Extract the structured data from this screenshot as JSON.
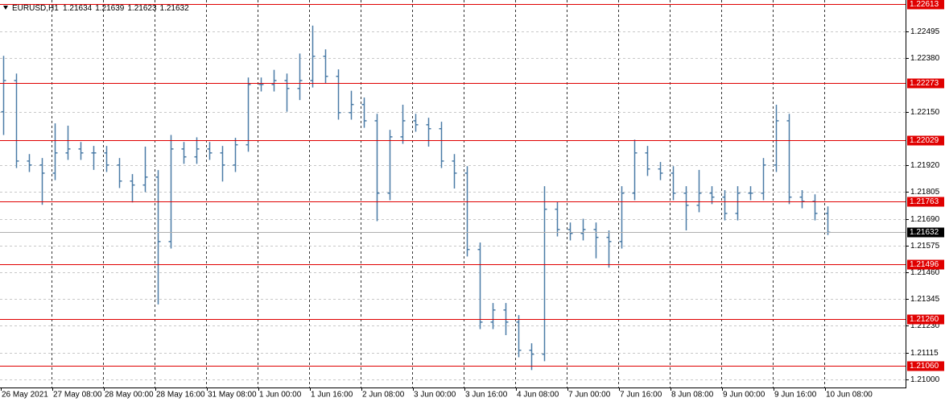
{
  "chart_data": {
    "type": "candlestick",
    "symbol": "EURUSD,H1",
    "quote": [
      1.21634,
      1.21639,
      1.21623,
      1.21632
    ],
    "color": "#4a7ba6",
    "level_color": "#e00000",
    "grid": true,
    "categories": [
      "26 May 2021",
      null,
      null,
      null,
      "27 May 08:00",
      null,
      null,
      null,
      "28 May 00:00",
      null,
      null,
      null,
      "28 May 16:00",
      null,
      null,
      null,
      "31 May 08:00",
      null,
      null,
      null,
      "1 Jun 00:00",
      null,
      null,
      null,
      "1 Jun 16:00",
      null,
      null,
      null,
      "2 Jun 08:00",
      null,
      null,
      null,
      "3 Jun 00:00",
      null,
      null,
      null,
      "3 Jun 16:00",
      null,
      null,
      null,
      "4 Jun 08:00",
      null,
      null,
      null,
      "7 Jun 00:00",
      null,
      null,
      null,
      "7 Jun 16:00",
      null,
      null,
      null,
      "8 Jun 08:00",
      null,
      null,
      null,
      "9 Jun 00:00",
      null,
      null,
      null,
      "9 Jun 16:00",
      null,
      null,
      null,
      "10 Jun 08:00"
    ],
    "open": [
      1.2215,
      1.22284,
      1.21938,
      1.21921,
      1.21886,
      1.21973,
      1.2199,
      1.21973,
      1.21973,
      1.21921,
      1.21852,
      1.21835,
      1.21869,
      1.21592,
      1.2199,
      1.21956,
      1.2199,
      1.21973,
      1.21921,
      1.22008,
      1.22267,
      1.22267,
      1.22284,
      1.2225,
      1.22284,
      1.22388,
      1.22302,
      1.22146,
      1.22181,
      1.22111,
      1.218,
      1.22042,
      1.22111,
      1.22094,
      1.22077,
      1.21938,
      1.21886,
      1.21558,
      1.21246,
      1.21298,
      1.21246,
      1.21125,
      1.21108,
      1.21731,
      1.21644,
      1.21627,
      1.21644,
      1.2161,
      1.21592,
      1.218,
      1.21973,
      1.21904,
      1.21886,
      1.218,
      1.21748,
      1.218,
      1.21783,
      1.21713,
      1.218,
      1.218,
      1.21921,
      1.22111,
      1.21783,
      1.21765,
      1.21713
    ],
    "high": [
      1.2239,
      1.22314,
      1.21968,
      1.21951,
      1.221,
      1.2209,
      1.2202,
      1.22003,
      1.22003,
      1.21951,
      1.21882,
      1.22,
      1.21899,
      1.2205,
      1.2202,
      1.2204,
      1.2202,
      1.22003,
      1.22038,
      1.22297,
      1.22297,
      1.2233,
      1.22314,
      1.224,
      1.2252,
      1.22418,
      1.22332,
      1.2224,
      1.22211,
      1.22141,
      1.22072,
      1.2218,
      1.22141,
      1.22124,
      1.22107,
      1.21968,
      1.21916,
      1.21588,
      1.21328,
      1.21328,
      1.21276,
      1.21155,
      1.2183,
      1.21761,
      1.21674,
      1.2169,
      1.21674,
      1.2164,
      1.2183,
      1.2203,
      1.22003,
      1.21934,
      1.21916,
      1.2183,
      1.219,
      1.2183,
      1.21813,
      1.2183,
      1.2183,
      1.21951,
      1.2218,
      1.22141,
      1.21813,
      1.21795,
      1.21743
    ],
    "low": [
      1.2205,
      1.21908,
      1.21891,
      1.2175,
      1.21856,
      1.21943,
      1.21943,
      1.219,
      1.21891,
      1.21822,
      1.2176,
      1.21805,
      1.21322,
      1.21562,
      1.21926,
      1.21926,
      1.21943,
      1.2185,
      1.21891,
      1.21978,
      1.22237,
      1.22237,
      1.2215,
      1.222,
      1.22254,
      1.22272,
      1.22116,
      1.22116,
      1.22081,
      1.2168,
      1.2177,
      1.22012,
      1.22064,
      1.22,
      1.21908,
      1.2182,
      1.21528,
      1.21216,
      1.21216,
      1.2119,
      1.21095,
      1.2104,
      1.21078,
      1.21614,
      1.21597,
      1.21597,
      1.2152,
      1.2148,
      1.21562,
      1.2177,
      1.21874,
      1.21856,
      1.2177,
      1.2164,
      1.21718,
      1.21753,
      1.21683,
      1.21683,
      1.2177,
      1.2177,
      1.21891,
      1.21753,
      1.21735,
      1.21683,
      1.2162
    ],
    "close": [
      1.22284,
      1.21938,
      1.21921,
      1.21886,
      1.21973,
      1.2199,
      1.21973,
      1.21973,
      1.21921,
      1.21852,
      1.21835,
      1.21869,
      1.21592,
      1.2199,
      1.21956,
      1.2199,
      1.21973,
      1.21921,
      1.22008,
      1.22267,
      1.22267,
      1.22284,
      1.2225,
      1.22284,
      1.22388,
      1.22302,
      1.22146,
      1.22181,
      1.22111,
      1.218,
      1.22042,
      1.22111,
      1.22094,
      1.22077,
      1.21938,
      1.21886,
      1.21558,
      1.21246,
      1.21298,
      1.21246,
      1.21125,
      1.21108,
      1.21731,
      1.21644,
      1.21627,
      1.21644,
      1.2161,
      1.21592,
      1.218,
      1.21973,
      1.21904,
      1.21886,
      1.218,
      1.21748,
      1.218,
      1.21783,
      1.21713,
      1.218,
      1.218,
      1.21921,
      1.22111,
      1.21783,
      1.21765,
      1.21713,
      1.21632
    ],
    "ylim": [
      1.20965,
      1.2263
    ],
    "yticks": [
      1.22495,
      {
        "value": 1.2238,
        "label": "1.22380"
      },
      {
        "value": 1.2215,
        "label": "1.22150"
      },
      {
        "value": 1.2192,
        "label": "1.21920"
      },
      1.21805,
      {
        "value": 1.2169,
        "label": "1.21690"
      },
      1.21575,
      {
        "value": 1.2146,
        "label": "1.21460"
      },
      1.21345,
      {
        "value": 1.2123,
        "label": "1.21230"
      },
      1.21115,
      {
        "value": 1.21,
        "label": "1.21000"
      }
    ],
    "levels": [
      1.22613,
      1.22273,
      1.22029,
      1.21763,
      1.21496,
      {
        "value": 1.2126,
        "label": "1.21260"
      },
      {
        "value": 1.2106,
        "label": "1.21060"
      }
    ],
    "current_price": 1.21632
  }
}
